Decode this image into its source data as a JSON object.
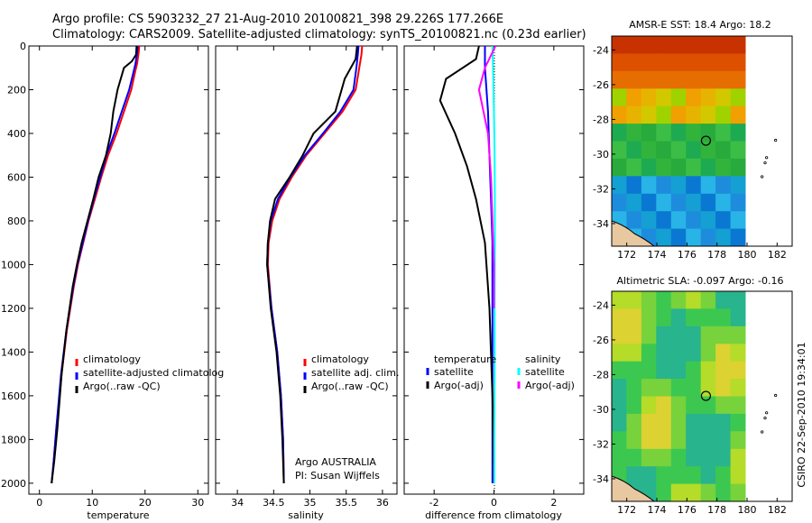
{
  "header": {
    "line1": "Argo profile: CS 5903232_27 21-Aug-2010 20100821_398 29.226S 177.266E",
    "line2": "Climatology: CARS2009. Satellite-adjusted climatology: synTS_20100821.nc (0.23d earlier)"
  },
  "colors": {
    "climatology": "#ff0000",
    "satellite": "#0000ff",
    "argo": "#000000",
    "salinity_satellite": "#00ffff",
    "salinity_argo": "#ff00ff"
  },
  "chart_data": [
    {
      "type": "line",
      "id": "temperature",
      "xlabel": "temperature",
      "ylabel": "",
      "xlim": [
        -2,
        32
      ],
      "ylim": [
        2050,
        0
      ],
      "xticks": [
        0,
        10,
        20,
        30
      ],
      "yticks": [
        0,
        200,
        400,
        600,
        800,
        1000,
        1200,
        1400,
        1600,
        1800,
        2000
      ],
      "legend": [
        "climatology",
        "satellite-adjusted climatolog",
        "Argo(..raw -QC)"
      ],
      "series": [
        {
          "name": "climatology",
          "color": "#ff0000",
          "x": [
            18.9,
            18.8,
            18.5,
            18.2,
            17.4,
            16,
            14.6,
            13,
            11.7,
            10.5,
            9.3,
            8.3,
            7.3,
            6.5,
            5.2,
            4.2,
            3.2,
            2.7,
            2.3
          ],
          "y": [
            0,
            30,
            80,
            110,
            200,
            300,
            400,
            500,
            600,
            700,
            800,
            900,
            1000,
            1100,
            1300,
            1500,
            1750,
            1900,
            2000
          ]
        },
        {
          "name": "satellite-adjusted climatolog",
          "color": "#0000ff",
          "x": [
            18.6,
            18.5,
            18.2,
            17.9,
            17,
            15.6,
            14.2,
            12.7,
            11.5,
            10.3,
            9.2,
            8.2,
            7.2,
            6.4,
            5.1,
            4.1,
            3.2,
            2.7,
            2.3
          ],
          "y": [
            0,
            30,
            80,
            110,
            200,
            300,
            400,
            500,
            600,
            700,
            800,
            900,
            1000,
            1100,
            1300,
            1500,
            1750,
            1900,
            2000
          ]
        },
        {
          "name": "Argo(..raw -QC)",
          "color": "#000000",
          "x": [
            18.4,
            18.3,
            17.5,
            16,
            14.8,
            14,
            13.5,
            12.6,
            11.2,
            10.2,
            9.1,
            8,
            7.1,
            6.3,
            5.1,
            4.2,
            3.4,
            2.8,
            2.3
          ],
          "y": [
            0,
            40,
            70,
            100,
            200,
            300,
            400,
            500,
            600,
            700,
            800,
            900,
            1000,
            1100,
            1300,
            1500,
            1750,
            1900,
            2000
          ]
        }
      ],
      "annotations": []
    },
    {
      "type": "line",
      "id": "salinity",
      "xlabel": "salinity",
      "xlim": [
        33.7,
        36.2
      ],
      "ylim": [
        2050,
        0
      ],
      "xticks": [
        34,
        34.5,
        35,
        35.5,
        36
      ],
      "legend": [
        "climatology",
        "satellite adj. clim.",
        "Argo(..raw -QC)"
      ],
      "series": [
        {
          "name": "climatology",
          "color": "#ff0000",
          "x": [
            35.72,
            35.71,
            35.68,
            35.63,
            35.45,
            35.2,
            34.95,
            34.75,
            34.58,
            34.48,
            34.43,
            34.42,
            34.47,
            34.55,
            34.6,
            34.63,
            34.64
          ],
          "y": [
            0,
            40,
            100,
            200,
            300,
            400,
            500,
            600,
            700,
            800,
            900,
            1000,
            1200,
            1400,
            1600,
            1800,
            2000
          ]
        },
        {
          "name": "satellite adj. clim.",
          "color": "#0000ff",
          "x": [
            35.67,
            35.66,
            35.64,
            35.6,
            35.42,
            35.18,
            34.93,
            34.73,
            34.56,
            34.46,
            34.42,
            34.41,
            34.47,
            34.55,
            34.6,
            34.63,
            34.64
          ],
          "y": [
            0,
            40,
            100,
            200,
            300,
            400,
            500,
            600,
            700,
            800,
            900,
            1000,
            1200,
            1400,
            1600,
            1800,
            2000
          ]
        },
        {
          "name": "Argo(..raw -QC)",
          "color": "#000000",
          "x": [
            35.65,
            35.63,
            35.48,
            35.35,
            35.05,
            34.9,
            34.72,
            34.52,
            34.45,
            34.42,
            34.41,
            34.46,
            34.54,
            34.59,
            34.62,
            34.64
          ],
          "y": [
            0,
            60,
            150,
            300,
            400,
            500,
            600,
            700,
            800,
            900,
            1000,
            1200,
            1400,
            1600,
            1800,
            2000
          ]
        }
      ],
      "annotations": [
        "Argo AUSTRALIA",
        "PI: Susan Wijffels"
      ]
    },
    {
      "type": "line",
      "id": "difference",
      "xlabel": "difference from climatology",
      "xlim": [
        -3,
        3
      ],
      "ylim": [
        2050,
        0
      ],
      "xticks": [
        -2,
        0,
        2
      ],
      "legend_temperature": {
        "title": "temperature",
        "items": [
          "satellite",
          "Argo(-adj)"
        ]
      },
      "legend_salinity": {
        "title": "salinity",
        "items": [
          "satellite",
          "Argo(-adj)"
        ]
      },
      "series": [
        {
          "name": "temperature satellite",
          "color": "#0000ff",
          "x": [
            -0.3,
            -0.3,
            -0.2,
            -0.15,
            -0.1,
            -0.05,
            -0.05,
            -0.05,
            -0.05,
            -0.05
          ],
          "y": [
            0,
            100,
            300,
            500,
            700,
            900,
            1200,
            1500,
            1800,
            2000
          ]
        },
        {
          "name": "temperature Argo(-adj)",
          "color": "#000000",
          "x": [
            -0.5,
            -0.6,
            -1.6,
            -1.8,
            -1.3,
            -0.9,
            -0.6,
            -0.3,
            -0.15,
            -0.05,
            0
          ],
          "y": [
            0,
            60,
            150,
            250,
            400,
            550,
            700,
            900,
            1200,
            1600,
            2000
          ]
        },
        {
          "name": "salinity satellite",
          "color": "#00ffff",
          "x": [
            -0.05,
            -0.03,
            0,
            0.02,
            0.03,
            0.03,
            0.02,
            0.02,
            0.01,
            0.01
          ],
          "y": [
            0,
            100,
            300,
            500,
            700,
            900,
            1200,
            1500,
            1800,
            2000
          ]
        },
        {
          "name": "salinity Argo(-adj)",
          "color": "#ff00ff",
          "x": [
            0.05,
            -0.3,
            -0.5,
            -0.2,
            -0.1,
            -0.05,
            0,
            0
          ],
          "y": [
            0,
            100,
            200,
            400,
            600,
            800,
            1000,
            1200
          ]
        }
      ],
      "annotations": []
    }
  ],
  "maps": [
    {
      "title": "AMSR-E SST: 18.4 Argo: 18.2",
      "xticks": [
        172,
        174,
        176,
        178,
        180,
        182
      ],
      "yticks": [
        -24,
        -26,
        -28,
        -30,
        -32,
        -34
      ],
      "marker": {
        "lon": 177.266,
        "lat": -29.226
      }
    },
    {
      "title": "Altimetric SLA: -0.097 Argo: -0.16",
      "xticks": [
        172,
        174,
        176,
        178,
        180,
        182
      ],
      "yticks": [
        -24,
        -26,
        -28,
        -30,
        -32,
        -34
      ],
      "marker": {
        "lon": 177.266,
        "lat": -29.226
      }
    }
  ],
  "footer": {
    "stamp": "CSIRO 22-Sep-2010 19:34:01"
  }
}
